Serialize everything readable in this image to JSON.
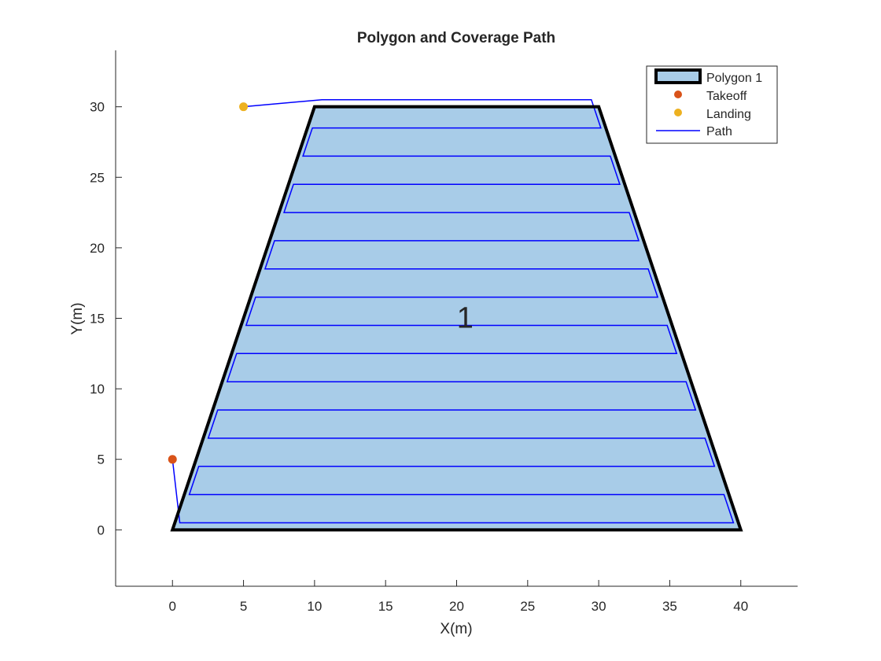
{
  "chart_data": {
    "type": "line",
    "title": "Polygon and Coverage Path",
    "xlabel": "X(m)",
    "ylabel": "Y(m)",
    "xlim": [
      -4,
      44
    ],
    "ylim": [
      -4,
      34
    ],
    "xticks": [
      0,
      5,
      10,
      15,
      20,
      25,
      30,
      35,
      40
    ],
    "yticks": [
      0,
      5,
      10,
      15,
      20,
      25,
      30
    ],
    "grid": false,
    "legend_position": "top-right",
    "polygon": {
      "name": "Polygon 1",
      "label": "1",
      "label_position": [
        20.6,
        15
      ],
      "vertices": [
        [
          0,
          0
        ],
        [
          40,
          0
        ],
        [
          30,
          30
        ],
        [
          10,
          30
        ]
      ],
      "fill_color": "#a8cce8",
      "edge_color": "#000000"
    },
    "takeoff": {
      "name": "Takeoff",
      "x": 0,
      "y": 5,
      "color": "#d95319"
    },
    "landing": {
      "name": "Landing",
      "x": 5,
      "y": 30,
      "color": "#edb120"
    },
    "path": {
      "name": "Path",
      "color": "#0000ff",
      "stripe_count": 16,
      "y_start": 0.5,
      "y_step": 2,
      "inset_m": 0.35
    }
  }
}
